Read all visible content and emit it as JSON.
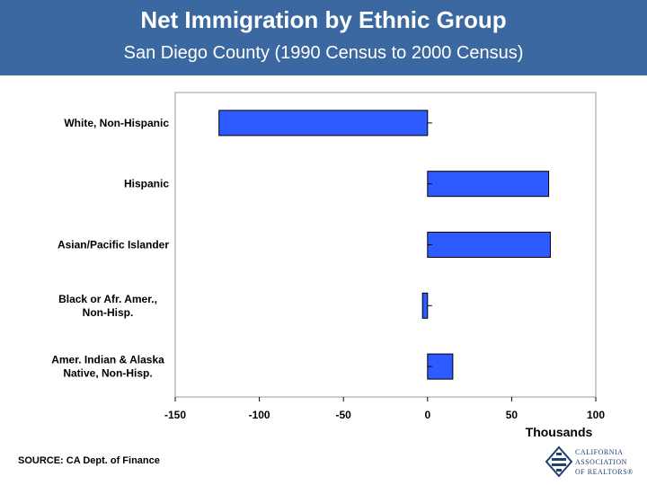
{
  "header": {
    "title": "Net Immigration by Ethnic Group",
    "subtitle": "San Diego County (1990 Census to 2000 Census)"
  },
  "chart_data": {
    "type": "bar",
    "orientation": "horizontal",
    "categories": [
      [
        "White, Non-Hispanic"
      ],
      [
        "Hispanic"
      ],
      [
        "Asian/Pacific Islander"
      ],
      [
        "Black or Afr. Amer.,",
        "Non-Hisp."
      ],
      [
        "Amer. Indian & Alaska",
        "Native, Non-Hisp."
      ]
    ],
    "values": [
      -124,
      72,
      73,
      -3,
      15
    ],
    "xlim": [
      -150,
      100
    ],
    "xticks": [
      "-150",
      "-100",
      "-50",
      "0",
      "50",
      "100"
    ],
    "xlabel": "Thousands",
    "ylabel": "",
    "grid": false,
    "bar_color": "#2e5bff"
  },
  "footer": {
    "source": "SOURCE: CA Dept. of Finance",
    "logo_lines": [
      "CALIFORNIA",
      "ASSOCIATION",
      "OF REALTORS®"
    ]
  }
}
